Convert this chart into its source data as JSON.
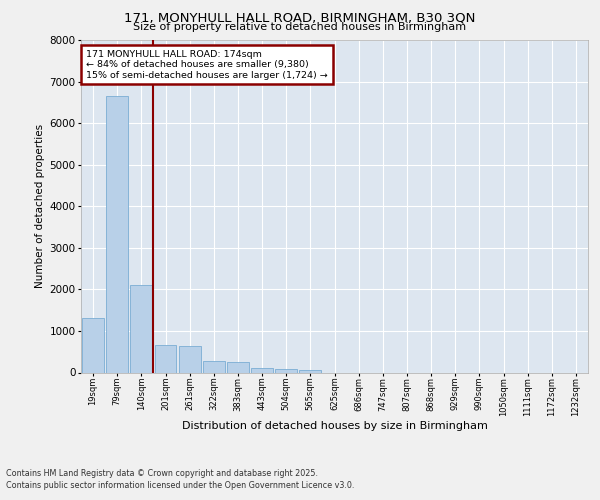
{
  "title_line1": "171, MONYHULL HALL ROAD, BIRMINGHAM, B30 3QN",
  "title_line2": "Size of property relative to detached houses in Birmingham",
  "xlabel": "Distribution of detached houses by size in Birmingham",
  "ylabel": "Number of detached properties",
  "categories": [
    "19sqm",
    "79sqm",
    "140sqm",
    "201sqm",
    "261sqm",
    "322sqm",
    "383sqm",
    "443sqm",
    "504sqm",
    "565sqm",
    "625sqm",
    "686sqm",
    "747sqm",
    "807sqm",
    "868sqm",
    "929sqm",
    "990sqm",
    "1050sqm",
    "1111sqm",
    "1172sqm",
    "1232sqm"
  ],
  "values": [
    1300,
    6650,
    2100,
    650,
    630,
    280,
    260,
    120,
    90,
    50,
    0,
    0,
    0,
    0,
    0,
    0,
    0,
    0,
    0,
    0,
    0
  ],
  "bar_color": "#b8d0e8",
  "bar_edge_color": "#7aadd4",
  "vline_position": 2.5,
  "vline_color": "#8b0000",
  "annotation_title": "171 MONYHULL HALL ROAD: 174sqm",
  "annotation_line2": "← 84% of detached houses are smaller (9,380)",
  "annotation_line3": "15% of semi-detached houses are larger (1,724) →",
  "annotation_box_color": "#8b0000",
  "ylim": [
    0,
    8000
  ],
  "yticks": [
    0,
    1000,
    2000,
    3000,
    4000,
    5000,
    6000,
    7000,
    8000
  ],
  "fig_bg_color": "#f0f0f0",
  "plot_bg_color": "#dde6f0",
  "grid_color": "#ffffff",
  "footnote_line1": "Contains HM Land Registry data © Crown copyright and database right 2025.",
  "footnote_line2": "Contains public sector information licensed under the Open Government Licence v3.0."
}
